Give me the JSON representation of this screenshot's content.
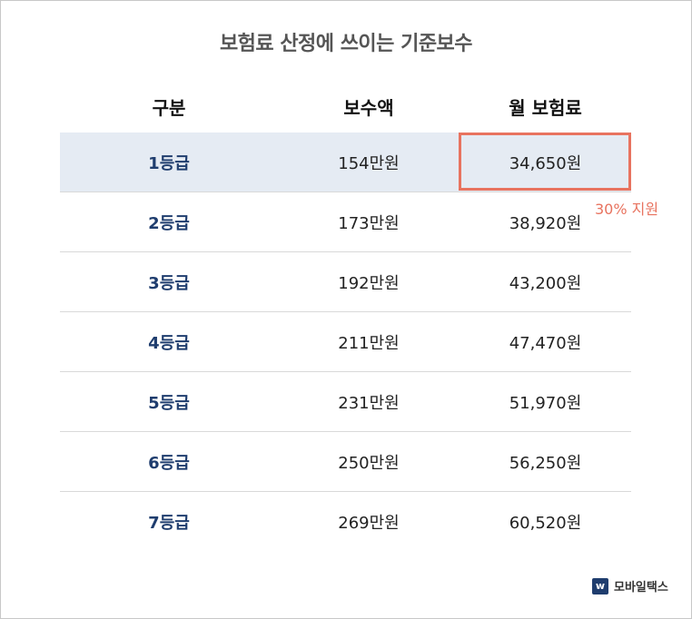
{
  "title": "보험료 산정에 쓰이는 기준보수",
  "headers": [
    "구분",
    "보수액",
    "월 보험료"
  ],
  "rows": [
    {
      "grade": "1등급",
      "pay": "154만원",
      "premium": "34,650원"
    },
    {
      "grade": "2등급",
      "pay": "173만원",
      "premium": "38,920원"
    },
    {
      "grade": "3등급",
      "pay": "192만원",
      "premium": "43,200원"
    },
    {
      "grade": "4등급",
      "pay": "211만원",
      "premium": "47,470원"
    },
    {
      "grade": "5등급",
      "pay": "231만원",
      "premium": "51,970원"
    },
    {
      "grade": "6등급",
      "pay": "250만원",
      "premium": "56,250원"
    },
    {
      "grade": "7등급",
      "pay": "269만원",
      "premium": "60,520원"
    }
  ],
  "annotation": "30% 지원",
  "brand": {
    "logo": "w",
    "name": "모바일택스"
  },
  "colors": {
    "accent": "#e8735f",
    "highlight_row": "#e5ebf3",
    "grade_text": "#1f3d6e"
  }
}
